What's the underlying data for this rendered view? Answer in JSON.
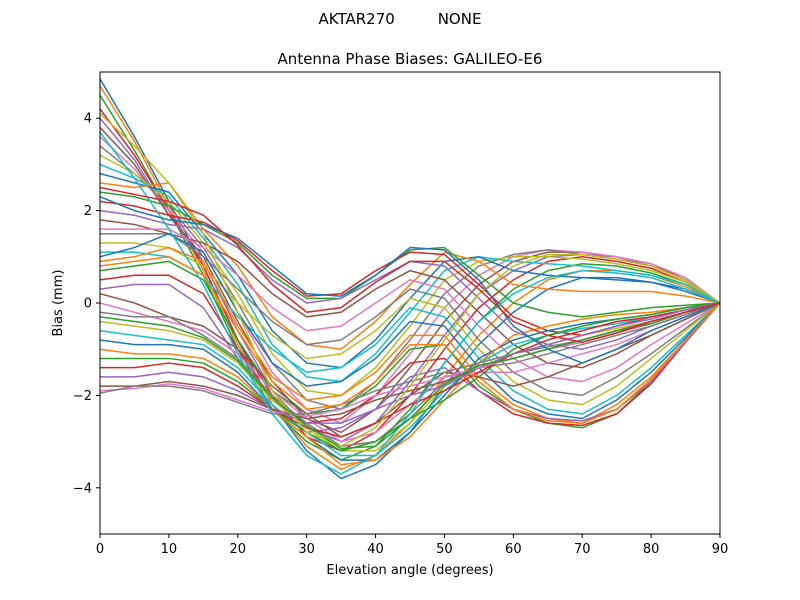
{
  "chart_data": {
    "type": "line",
    "suptitle": "AKTAR270         NONE",
    "title": "Antenna Phase Biases: GALILEO-E6",
    "xlabel": "Elevation angle (degrees)",
    "ylabel": "Bias (mm)",
    "xlim": [
      0,
      90
    ],
    "ylim": [
      -5,
      5
    ],
    "xticks": [
      0,
      10,
      20,
      30,
      40,
      50,
      60,
      70,
      80,
      90
    ],
    "yticks": [
      -4,
      -2,
      0,
      2,
      4
    ],
    "xtick_labels": [
      "0",
      "10",
      "20",
      "30",
      "40",
      "50",
      "60",
      "70",
      "80",
      "90"
    ],
    "ytick_labels": [
      "−4",
      "−2",
      "0",
      "2",
      "4"
    ],
    "grid": false,
    "legend": "none",
    "x": [
      0,
      5,
      10,
      15,
      20,
      25,
      30,
      35,
      40,
      45,
      50,
      55,
      60,
      65,
      70,
      75,
      80,
      85,
      90
    ],
    "colors": [
      "#1f77b4",
      "#ff7f0e",
      "#2ca02c",
      "#d62728",
      "#9467bd",
      "#8c564b",
      "#e377c2",
      "#7f7f7f",
      "#bcbd22",
      "#17becf"
    ],
    "series": [
      {
        "values": [
          4.85,
          3.6,
          2.2,
          0.8,
          -0.8,
          -2.2,
          -3.2,
          -3.8,
          -3.5,
          -2.8,
          -1.8,
          -0.9,
          -0.2,
          0.3,
          0.55,
          0.55,
          0.45,
          0.25,
          0
        ]
      },
      {
        "values": [
          4.7,
          3.5,
          2.1,
          0.7,
          -0.9,
          -2.2,
          -3.1,
          -3.6,
          -3.3,
          -2.6,
          -1.6,
          -0.7,
          0.0,
          0.5,
          0.7,
          0.7,
          0.6,
          0.35,
          0
        ]
      },
      {
        "values": [
          4.5,
          3.3,
          2.0,
          0.6,
          -1.0,
          -2.3,
          -3.0,
          -3.4,
          -3.1,
          -2.3,
          -1.3,
          -0.4,
          0.3,
          0.7,
          0.85,
          0.8,
          0.65,
          0.4,
          0
        ]
      },
      {
        "values": [
          4.2,
          3.2,
          2.0,
          0.8,
          -0.8,
          -2.0,
          -2.9,
          -3.2,
          -2.8,
          -2.0,
          -1.0,
          -0.1,
          0.5,
          0.9,
          1.0,
          0.9,
          0.75,
          0.45,
          0
        ]
      },
      {
        "values": [
          4.0,
          3.1,
          1.9,
          0.9,
          -0.6,
          -1.9,
          -2.7,
          -3.0,
          -2.6,
          -1.7,
          -0.7,
          0.2,
          0.7,
          1.0,
          1.05,
          1.0,
          0.8,
          0.5,
          0
        ]
      },
      {
        "values": [
          3.8,
          3.0,
          1.9,
          1.0,
          -0.4,
          -1.7,
          -2.5,
          -2.8,
          -2.3,
          -1.4,
          -0.4,
          0.4,
          0.9,
          1.1,
          1.1,
          1.0,
          0.85,
          0.5,
          0
        ]
      },
      {
        "values": [
          3.6,
          2.9,
          2.0,
          1.1,
          -0.2,
          -1.5,
          -2.3,
          -2.6,
          -2.0,
          -1.1,
          -0.1,
          0.6,
          1.0,
          1.15,
          1.1,
          1.0,
          0.85,
          0.55,
          0
        ]
      },
      {
        "values": [
          3.4,
          2.8,
          2.1,
          1.2,
          0.0,
          -1.3,
          -2.1,
          -2.3,
          -1.7,
          -0.8,
          0.2,
          0.8,
          1.05,
          1.15,
          1.05,
          0.95,
          0.8,
          0.5,
          0
        ]
      },
      {
        "values": [
          3.2,
          2.8,
          2.2,
          1.3,
          0.2,
          -1.1,
          -1.9,
          -2.0,
          -1.4,
          -0.5,
          0.5,
          0.9,
          1.0,
          1.0,
          0.95,
          0.85,
          0.7,
          0.45,
          0
        ]
      },
      {
        "values": [
          3.0,
          2.7,
          2.3,
          1.4,
          0.4,
          -0.9,
          -1.6,
          -1.7,
          -1.1,
          -0.2,
          0.7,
          1.0,
          0.9,
          0.85,
          0.8,
          0.7,
          0.6,
          0.4,
          0
        ]
      },
      {
        "values": [
          2.8,
          2.6,
          2.4,
          1.5,
          0.6,
          -0.6,
          -1.3,
          -1.4,
          -0.8,
          0.1,
          0.9,
          1.0,
          0.7,
          0.6,
          0.55,
          0.5,
          0.45,
          0.3,
          0
        ]
      },
      {
        "values": [
          2.6,
          2.5,
          2.6,
          1.6,
          0.8,
          -0.3,
          -0.9,
          -1.0,
          -0.4,
          0.4,
          1.1,
          0.9,
          0.4,
          0.3,
          0.25,
          0.25,
          0.25,
          0.15,
          0
        ]
      },
      {
        "values": [
          2.4,
          2.3,
          2.1,
          1.7,
          1.3,
          0.6,
          0.1,
          0.1,
          0.6,
          1.15,
          1.2,
          0.6,
          0.0,
          -0.2,
          -0.3,
          -0.2,
          -0.1,
          -0.05,
          0
        ]
      },
      {
        "values": [
          2.2,
          2.1,
          1.9,
          1.75,
          1.35,
          0.7,
          0.15,
          0.2,
          0.7,
          1.1,
          1.05,
          0.4,
          -0.3,
          -0.6,
          -0.7,
          -0.5,
          -0.3,
          -0.15,
          0
        ]
      },
      {
        "values": [
          2.0,
          1.9,
          1.7,
          1.6,
          1.2,
          0.5,
          0.0,
          0.1,
          0.5,
          0.9,
          0.8,
          0.1,
          -0.6,
          -0.9,
          -1.0,
          -0.8,
          -0.5,
          -0.25,
          0
        ]
      },
      {
        "values": [
          1.8,
          1.7,
          1.5,
          1.3,
          0.9,
          0.2,
          -0.3,
          -0.2,
          0.3,
          0.7,
          0.5,
          -0.2,
          -0.9,
          -1.3,
          -1.4,
          -1.1,
          -0.7,
          -0.35,
          0
        ]
      },
      {
        "values": [
          1.6,
          1.6,
          1.6,
          1.2,
          0.6,
          -0.1,
          -0.6,
          -0.5,
          0.0,
          0.5,
          0.3,
          -0.5,
          -1.2,
          -1.6,
          -1.7,
          -1.4,
          -0.9,
          -0.45,
          0
        ]
      },
      {
        "values": [
          1.5,
          1.5,
          1.5,
          1.0,
          0.3,
          -0.4,
          -0.9,
          -0.8,
          -0.3,
          0.3,
          0.1,
          -0.8,
          -1.5,
          -1.9,
          -2.0,
          -1.6,
          -1.1,
          -0.55,
          0
        ]
      },
      {
        "values": [
          1.3,
          1.3,
          1.2,
          0.8,
          0.0,
          -0.7,
          -1.2,
          -1.1,
          -0.6,
          0.1,
          -0.1,
          -1.0,
          -1.7,
          -2.1,
          -2.2,
          -1.8,
          -1.2,
          -0.6,
          0
        ]
      },
      {
        "values": [
          1.1,
          1.1,
          1.0,
          0.6,
          -0.3,
          -1.0,
          -1.5,
          -1.4,
          -0.9,
          -0.1,
          -0.3,
          -1.2,
          -1.9,
          -2.3,
          -2.4,
          -2.0,
          -1.4,
          -0.7,
          0
        ]
      },
      {
        "values": [
          1.0,
          1.2,
          1.5,
          1.1,
          -0.2,
          -1.3,
          -1.8,
          -1.7,
          -1.2,
          -0.4,
          -0.5,
          -1.4,
          -2.1,
          -2.4,
          -2.5,
          -2.1,
          -1.5,
          -0.75,
          0
        ]
      },
      {
        "values": [
          0.9,
          1.0,
          1.2,
          0.9,
          -0.5,
          -1.6,
          -2.1,
          -2.0,
          -1.5,
          -0.7,
          -0.7,
          -1.6,
          -2.2,
          -2.5,
          -2.6,
          -2.2,
          -1.6,
          -0.8,
          0
        ]
      },
      {
        "values": [
          0.7,
          0.8,
          0.9,
          0.5,
          -0.8,
          -1.9,
          -2.4,
          -2.3,
          -1.8,
          -1.0,
          -0.9,
          -1.8,
          -2.3,
          -2.6,
          -2.7,
          -2.4,
          -1.7,
          -0.85,
          0
        ]
      },
      {
        "values": [
          0.5,
          0.6,
          0.6,
          0.2,
          -1.0,
          -2.1,
          -2.6,
          -2.5,
          -2.0,
          -1.3,
          -1.2,
          -1.9,
          -2.4,
          -2.6,
          -2.65,
          -2.4,
          -1.75,
          -0.85,
          0
        ]
      },
      {
        "values": [
          0.3,
          0.4,
          0.4,
          -0.1,
          -1.2,
          -2.3,
          -2.8,
          -2.7,
          -2.3,
          -1.6,
          -1.4,
          -1.9,
          -2.3,
          -2.5,
          -2.55,
          -2.3,
          -1.7,
          -0.85,
          0
        ]
      },
      {
        "values": [
          0.2,
          0.0,
          -0.3,
          -0.5,
          -1.0,
          -1.8,
          -2.4,
          -2.9,
          -2.6,
          -2.0,
          -1.5,
          -1.6,
          -1.8,
          -1.6,
          -1.3,
          -1.0,
          -0.7,
          -0.35,
          0
        ]
      },
      {
        "values": [
          0.0,
          -0.2,
          -0.4,
          -0.6,
          -1.1,
          -1.9,
          -2.5,
          -3.0,
          -2.8,
          -2.2,
          -1.6,
          -1.5,
          -1.5,
          -1.3,
          -1.1,
          -0.9,
          -0.6,
          -0.3,
          0
        ]
      },
      {
        "values": [
          -0.2,
          -0.3,
          -0.3,
          -0.7,
          -1.2,
          -2.0,
          -2.6,
          -3.1,
          -3.0,
          -2.4,
          -1.7,
          -1.4,
          -1.3,
          -1.1,
          -0.9,
          -0.7,
          -0.5,
          -0.25,
          0
        ]
      },
      {
        "values": [
          -0.4,
          -0.5,
          -0.6,
          -0.8,
          -1.3,
          -2.1,
          -2.7,
          -3.2,
          -3.2,
          -2.6,
          -1.8,
          -1.3,
          -1.1,
          -0.9,
          -0.7,
          -0.55,
          -0.4,
          -0.2,
          0
        ]
      },
      {
        "values": [
          -0.6,
          -0.7,
          -0.8,
          -0.9,
          -1.4,
          -2.2,
          -2.8,
          -3.3,
          -3.3,
          -2.7,
          -1.9,
          -1.3,
          -0.9,
          -0.7,
          -0.55,
          -0.45,
          -0.3,
          -0.15,
          0
        ]
      },
      {
        "values": [
          -0.8,
          -0.9,
          -0.9,
          -1.0,
          -1.5,
          -2.3,
          -2.9,
          -3.4,
          -3.4,
          -2.8,
          -2.0,
          -1.2,
          -0.8,
          -0.6,
          -0.45,
          -0.35,
          -0.25,
          -0.1,
          0
        ]
      },
      {
        "values": [
          -1.0,
          -1.1,
          -1.1,
          -1.2,
          -1.6,
          -2.3,
          -2.9,
          -3.5,
          -3.4,
          -2.9,
          -2.1,
          -1.3,
          -0.7,
          -0.5,
          -0.35,
          -0.25,
          -0.2,
          -0.1,
          0
        ]
      },
      {
        "values": [
          -1.2,
          -1.2,
          -1.2,
          -1.3,
          -1.7,
          -2.3,
          -2.8,
          -3.2,
          -3.0,
          -2.5,
          -2.1,
          -1.6,
          -1.0,
          -0.7,
          -0.5,
          -0.35,
          -0.25,
          -0.1,
          0
        ]
      },
      {
        "values": [
          -1.4,
          -1.4,
          -1.3,
          -1.4,
          -1.8,
          -2.3,
          -2.7,
          -2.9,
          -2.6,
          -2.2,
          -1.9,
          -1.5,
          -1.1,
          -0.8,
          -0.6,
          -0.4,
          -0.3,
          -0.15,
          0
        ]
      },
      {
        "values": [
          -1.6,
          -1.6,
          -1.5,
          -1.6,
          -1.9,
          -2.3,
          -2.6,
          -2.6,
          -2.3,
          -2.0,
          -1.8,
          -1.4,
          -1.1,
          -0.9,
          -0.7,
          -0.5,
          -0.35,
          -0.15,
          0
        ]
      },
      {
        "values": [
          -1.8,
          -1.8,
          -1.7,
          -1.8,
          -2.0,
          -2.3,
          -2.5,
          -2.4,
          -2.1,
          -1.9,
          -1.7,
          -1.4,
          -1.2,
          -1.0,
          -0.8,
          -0.6,
          -0.4,
          -0.2,
          0
        ]
      },
      {
        "values": [
          -1.9,
          -1.85,
          -1.75,
          -1.85,
          -2.1,
          -2.35,
          -2.45,
          -2.3,
          -2.0,
          -1.8,
          -1.6,
          -1.4,
          -1.2,
          -1.0,
          -0.85,
          -0.65,
          -0.45,
          -0.2,
          0
        ]
      },
      {
        "values": [
          -1.95,
          -1.8,
          -1.8,
          -1.9,
          -2.15,
          -2.4,
          -2.4,
          -2.2,
          -1.9,
          -1.7,
          -1.5,
          -1.3,
          -1.1,
          -0.95,
          -0.8,
          -0.6,
          -0.4,
          -0.2,
          0
        ]
      },
      {
        "values": [
          4.1,
          3.4,
          2.6,
          1.5,
          -0.2,
          -1.9,
          -2.8,
          -3.1,
          -2.7,
          -1.8,
          -0.8,
          0.2,
          0.8,
          1.05,
          1.05,
          0.95,
          0.8,
          0.5,
          0
        ]
      },
      {
        "values": [
          3.7,
          2.7,
          1.6,
          0.4,
          -1.1,
          -2.4,
          -3.3,
          -3.7,
          -3.3,
          -2.4,
          -1.3,
          -0.4,
          0.2,
          0.55,
          0.7,
          0.65,
          0.55,
          0.3,
          0
        ]
      },
      {
        "values": [
          2.3,
          2.0,
          1.8,
          1.7,
          1.4,
          0.8,
          0.2,
          0.15,
          0.6,
          1.2,
          1.15,
          0.5,
          -0.5,
          -1.0,
          -1.3,
          -1.0,
          -0.6,
          -0.3,
          0
        ]
      },
      {
        "values": [
          0.8,
          0.9,
          1.0,
          0.6,
          -0.6,
          -1.7,
          -2.3,
          -2.2,
          -1.7,
          -0.9,
          -0.9,
          -1.7,
          -2.3,
          -2.55,
          -2.6,
          -2.3,
          -1.65,
          -0.8,
          0
        ]
      },
      {
        "values": [
          -0.3,
          -0.4,
          -0.5,
          -0.75,
          -1.25,
          -2.05,
          -2.65,
          -3.15,
          -3.1,
          -2.5,
          -1.75,
          -1.35,
          -1.2,
          -1.0,
          -0.8,
          -0.6,
          -0.45,
          -0.2,
          0
        ]
      },
      {
        "values": [
          2.5,
          2.35,
          2.2,
          1.9,
          1.25,
          0.4,
          -0.2,
          -0.1,
          0.45,
          0.9,
          0.9,
          0.3,
          -0.4,
          -0.7,
          -0.85,
          -0.65,
          -0.4,
          -0.2,
          0
        ]
      }
    ]
  }
}
